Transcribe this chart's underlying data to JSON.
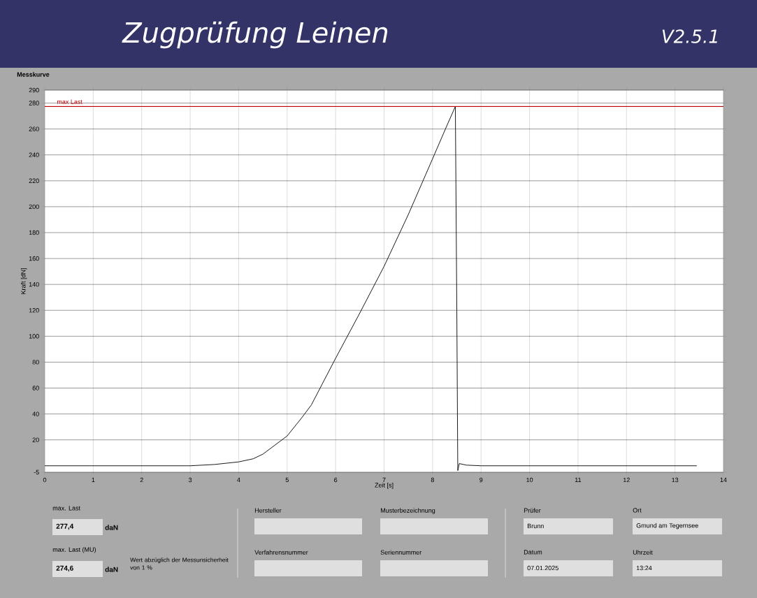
{
  "chart_data": {
    "type": "line",
    "title": "Zugprüfung Leinen",
    "subtitle": "Messkurve",
    "xlabel": "Zeit [s]",
    "ylabel": "Kraft [dN]",
    "series": [
      {
        "color": "#000000",
        "x": [
          0,
          1,
          2,
          3,
          3.5,
          4.0,
          4.3,
          4.5,
          4.7,
          5.0,
          5.3,
          5.5,
          6.0,
          6.5,
          7.0,
          7.5,
          8.0,
          8.3,
          8.47,
          8.5,
          8.52,
          8.55,
          8.7,
          9,
          10,
          11,
          12,
          13,
          13.45
        ],
        "values": [
          0,
          0,
          0,
          0,
          1,
          3,
          5.4,
          9,
          14.6,
          23,
          37,
          47,
          83,
          118,
          154,
          194,
          237,
          263,
          277.4,
          120,
          -3.7,
          1.7,
          0.5,
          0,
          0,
          0,
          0,
          0,
          0
        ]
      }
    ],
    "xlim": [
      0,
      14
    ],
    "ylim": [
      -5,
      290
    ],
    "xticks": [
      0,
      1,
      2,
      3,
      4,
      5,
      6,
      7,
      8,
      9,
      10,
      11,
      12,
      13,
      14
    ],
    "yticks": [
      -5,
      20,
      40,
      60,
      80,
      100,
      120,
      140,
      160,
      180,
      200,
      220,
      240,
      260,
      280,
      290
    ],
    "grid": true,
    "ref_lines": [
      {
        "axis": "y",
        "value": 277.4,
        "label": "max Last",
        "color": "#c00000"
      }
    ],
    "annotations": [
      "max. Last",
      "277,4",
      "daN",
      "max. Last (MU)",
      "274,6",
      "daN",
      "Wert abzüglich der Messunsicherheit von 1 %",
      "Hersteller",
      "Verfahrensnummer",
      "Musterbezeichnung",
      "Seriennummer",
      "Prüfer",
      "Brunn",
      "Datum",
      "07.01.2025",
      "Ort",
      "Gmund am Tegernsee",
      "Uhrzeit",
      "13:24",
      "V2.5.1"
    ]
  }
}
